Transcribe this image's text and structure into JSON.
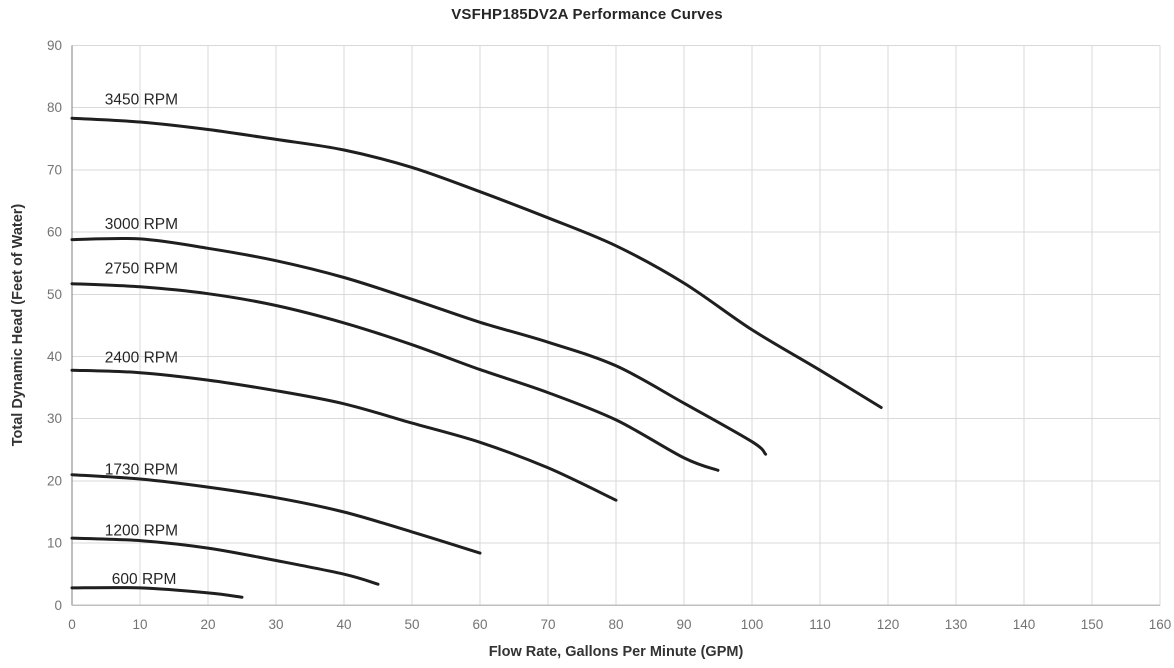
{
  "title": "VSFHP185DV2A Performance Curves",
  "chart_data": {
    "type": "line",
    "title": "VSFHP185DV2A Performance Curves",
    "xlabel": "Flow Rate, Gallons Per Minute (GPM)",
    "ylabel": "Total Dynamic Head (Feet of Water)",
    "xlim": [
      0,
      160
    ],
    "ylim": [
      0,
      90
    ],
    "x_ticks": [
      0,
      10,
      20,
      30,
      40,
      50,
      60,
      70,
      80,
      90,
      100,
      110,
      120,
      130,
      140,
      150,
      160
    ],
    "y_ticks": [
      0,
      10,
      20,
      30,
      40,
      50,
      60,
      70,
      80,
      90
    ],
    "grid": true,
    "legend_position": "inline-labels",
    "colors": {
      "curve": "#1f1f1f",
      "gridline": "#d9d9d9",
      "axis_left": "#7f7f7f",
      "axis_bottom": "#bfbfbf",
      "tick_text": "#737373",
      "title_text": "#262626"
    },
    "series": [
      {
        "name": "3450 RPM",
        "label": {
          "x": 10.2,
          "y": 81.4
        },
        "points": [
          [
            0,
            78.3
          ],
          [
            10,
            77.7
          ],
          [
            20,
            76.5
          ],
          [
            30,
            74.9
          ],
          [
            40,
            73.2
          ],
          [
            50,
            70.4
          ],
          [
            60,
            66.5
          ],
          [
            70,
            62.3
          ],
          [
            80,
            57.8
          ],
          [
            90,
            51.8
          ],
          [
            100,
            44.3
          ],
          [
            110,
            37.8
          ],
          [
            119,
            31.8
          ]
        ]
      },
      {
        "name": "3000 RPM",
        "label": {
          "x": 10.2,
          "y": 61.4
        },
        "points": [
          [
            0,
            58.8
          ],
          [
            10,
            58.9
          ],
          [
            20,
            57.4
          ],
          [
            30,
            55.4
          ],
          [
            40,
            52.7
          ],
          [
            50,
            49.2
          ],
          [
            60,
            45.5
          ],
          [
            70,
            42.3
          ],
          [
            80,
            38.5
          ],
          [
            90,
            32.5
          ],
          [
            100,
            26.3
          ],
          [
            102,
            24.3
          ]
        ]
      },
      {
        "name": "2750 RPM",
        "label": {
          "x": 10.2,
          "y": 54.2
        },
        "points": [
          [
            0,
            51.7
          ],
          [
            10,
            51.2
          ],
          [
            20,
            50.1
          ],
          [
            30,
            48.2
          ],
          [
            40,
            45.4
          ],
          [
            50,
            41.9
          ],
          [
            60,
            37.9
          ],
          [
            70,
            34.2
          ],
          [
            80,
            29.8
          ],
          [
            90,
            23.7
          ],
          [
            95,
            21.7
          ]
        ]
      },
      {
        "name": "2400 RPM",
        "label": {
          "x": 10.2,
          "y": 39.9
        },
        "points": [
          [
            0,
            37.8
          ],
          [
            10,
            37.4
          ],
          [
            20,
            36.2
          ],
          [
            30,
            34.5
          ],
          [
            40,
            32.4
          ],
          [
            50,
            29.3
          ],
          [
            60,
            26.2
          ],
          [
            70,
            22.1
          ],
          [
            80,
            16.9
          ]
        ]
      },
      {
        "name": "1730 RPM",
        "label": {
          "x": 10.2,
          "y": 21.9
        },
        "points": [
          [
            0,
            21.0
          ],
          [
            10,
            20.3
          ],
          [
            20,
            19.0
          ],
          [
            30,
            17.3
          ],
          [
            40,
            15.0
          ],
          [
            50,
            11.8
          ],
          [
            60,
            8.4
          ]
        ]
      },
      {
        "name": "1200 RPM",
        "label": {
          "x": 10.2,
          "y": 12.1
        },
        "points": [
          [
            0,
            10.8
          ],
          [
            10,
            10.4
          ],
          [
            20,
            9.2
          ],
          [
            30,
            7.2
          ],
          [
            40,
            5.0
          ],
          [
            45,
            3.4
          ]
        ]
      },
      {
        "name": "600 RPM",
        "label": {
          "x": 10.6,
          "y": 4.3
        },
        "points": [
          [
            0,
            2.8
          ],
          [
            10,
            2.8
          ],
          [
            20,
            2.0
          ],
          [
            25,
            1.3
          ]
        ]
      }
    ]
  }
}
